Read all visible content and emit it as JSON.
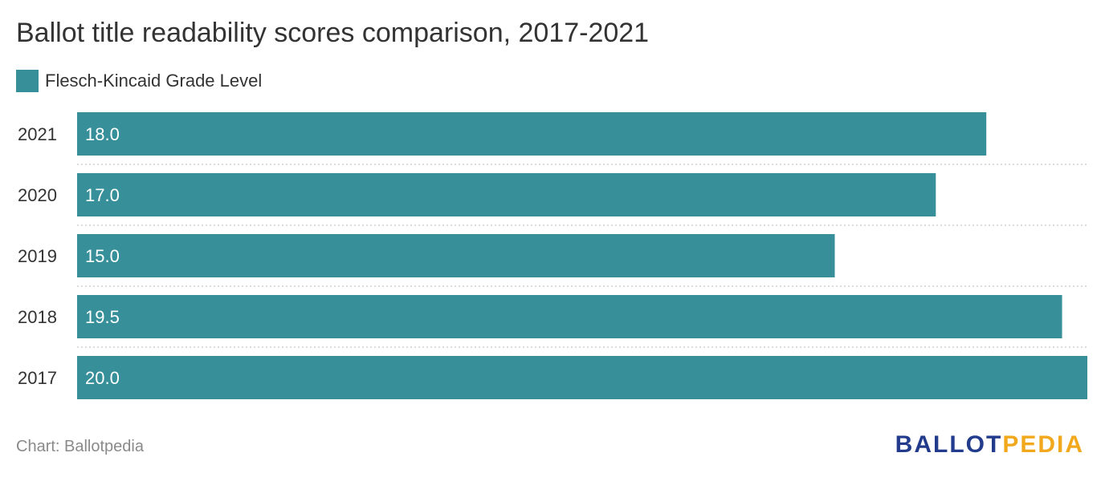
{
  "chart_data": {
    "type": "bar",
    "orientation": "horizontal",
    "title": "Ballot title readability scores comparison, 2017-2021",
    "categories": [
      "2021",
      "2020",
      "2019",
      "2018",
      "2017"
    ],
    "series": [
      {
        "name": "Flesch-Kincaid Grade Level",
        "values": [
          18.0,
          17.0,
          15.0,
          19.5,
          20.0
        ],
        "labels": [
          "18.0",
          "17.0",
          "15.0",
          "19.5",
          "20.0"
        ],
        "color": "#368f99"
      }
    ],
    "xlim": [
      0,
      20
    ],
    "grid": false,
    "legend_position": "top-left"
  },
  "footer": {
    "source": "Chart: Ballotpedia",
    "logo_part1": "BALLOT",
    "logo_part2": "PEDIA"
  },
  "colors": {
    "bar": "#368f99",
    "separator": "#d0d0d0",
    "logo_primary": "#233b8c",
    "logo_accent": "#f2a81d"
  }
}
